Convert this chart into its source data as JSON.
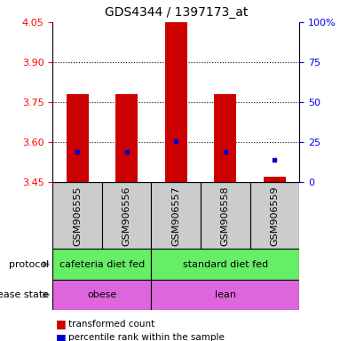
{
  "title": "GDS4344 / 1397173_at",
  "samples": [
    "GSM906555",
    "GSM906556",
    "GSM906557",
    "GSM906558",
    "GSM906559"
  ],
  "bar_tops": [
    3.78,
    3.78,
    4.05,
    3.78,
    3.47
  ],
  "bar_bottoms": [
    3.45,
    3.45,
    3.45,
    3.45,
    3.45
  ],
  "blue_squares": [
    3.565,
    3.565,
    3.605,
    3.565,
    3.535
  ],
  "ylim": [
    3.45,
    4.05
  ],
  "yticks_left": [
    3.45,
    3.6,
    3.75,
    3.9,
    4.05
  ],
  "yticks_right_vals": [
    0,
    25,
    50,
    75,
    100
  ],
  "bar_color": "#cc0000",
  "blue_color": "#0000cc",
  "dotted_lines": [
    3.9,
    3.75,
    3.6
  ],
  "protocol_labels": [
    "cafeteria diet fed",
    "standard diet fed"
  ],
  "protocol_color": "#66ee66",
  "disease_labels": [
    "obese",
    "lean"
  ],
  "disease_color": "#dd66dd",
  "bar_width": 0.45,
  "sample_bg": "#cccccc",
  "legend_red_label": "transformed count",
  "legend_blue_label": "percentile rank within the sample",
  "title_fontsize": 10,
  "tick_fontsize": 8,
  "label_fontsize": 8,
  "anno_fontsize": 8
}
